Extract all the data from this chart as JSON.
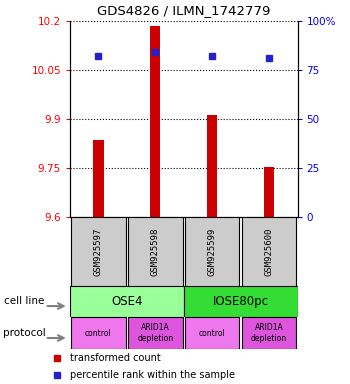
{
  "title": "GDS4826 / ILMN_1742779",
  "samples": [
    "GSM925597",
    "GSM925598",
    "GSM925599",
    "GSM925600"
  ],
  "bar_values": [
    9.836,
    10.185,
    9.912,
    9.752
  ],
  "bar_base": 9.6,
  "percentile_values": [
    82,
    84,
    82,
    81
  ],
  "left_yticks": [
    9.6,
    9.75,
    9.9,
    10.05,
    10.2
  ],
  "right_yticks": [
    0,
    25,
    50,
    75,
    100
  ],
  "left_ylim": [
    9.6,
    10.2
  ],
  "right_ylim": [
    0,
    100
  ],
  "bar_color": "#cc0000",
  "dot_color": "#2222cc",
  "cell_line_labels": [
    "OSE4",
    "IOSE80pc"
  ],
  "cell_line_colors": [
    "#99ff99",
    "#33dd33"
  ],
  "cell_line_spans": [
    [
      0.5,
      2.5
    ],
    [
      2.5,
      4.5
    ]
  ],
  "protocol_labels": [
    "control",
    "ARID1A\ndepletion",
    "control",
    "ARID1A\ndepletion"
  ],
  "protocol_colors": [
    "#ee77ee",
    "#dd55dd",
    "#ee77ee",
    "#dd55dd"
  ],
  "sample_bg_color": "#cccccc",
  "legend_bar_label": "transformed count",
  "legend_dot_label": "percentile rank within the sample",
  "cell_line_row_label": "cell line",
  "protocol_row_label": "protocol",
  "bar_width": 0.18
}
